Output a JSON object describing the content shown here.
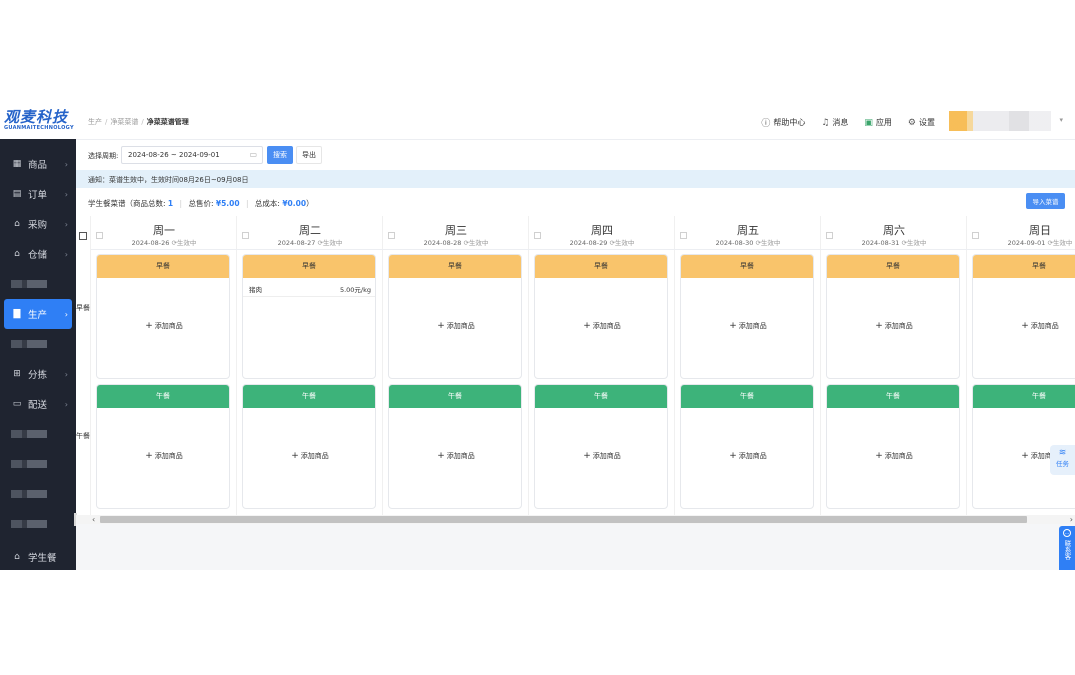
{
  "logo": {
    "main": "观麦科技",
    "sub": "GUANMAITECHNOLOGY"
  },
  "sidebar": {
    "items": [
      {
        "label": "商品",
        "icon": "grid-icon",
        "glyph": "▦"
      },
      {
        "label": "订单",
        "icon": "order-icon",
        "glyph": "▤"
      },
      {
        "label": "采购",
        "icon": "purchase-icon",
        "glyph": "⌂"
      },
      {
        "label": "仓储",
        "icon": "warehouse-icon",
        "glyph": "⌂"
      },
      {
        "label": "",
        "icon": "blurred-icon",
        "glyph": ""
      },
      {
        "label": "生产",
        "icon": "production-icon",
        "glyph": "▇",
        "active": true
      },
      {
        "label": "",
        "icon": "blurred-icon",
        "glyph": ""
      },
      {
        "label": "分拣",
        "icon": "sorting-icon",
        "glyph": "⊞"
      },
      {
        "label": "配送",
        "icon": "delivery-icon",
        "glyph": "▭"
      },
      {
        "label": "",
        "icon": "blurred-icon",
        "glyph": ""
      },
      {
        "label": "",
        "icon": "blurred-icon",
        "glyph": ""
      },
      {
        "label": "",
        "icon": "blurred-icon",
        "glyph": ""
      },
      {
        "label": "",
        "icon": "blurred-icon",
        "glyph": ""
      }
    ],
    "bottom": {
      "label": "学生餐",
      "glyph": "⌂"
    }
  },
  "breadcrumb": {
    "level1": "生产",
    "level2": "净菜菜谱",
    "current": "净菜菜谱管理"
  },
  "header": {
    "help": "帮助中心",
    "messages": "消息",
    "apps": "应用",
    "settings": "设置"
  },
  "toolbar": {
    "period_label": "选择周期:",
    "date_range": "2024-08-26 ~ 2024-09-01",
    "search": "搜索",
    "export": "导出"
  },
  "notice": "通知：菜谱生效中，生效时间08月26日~09月08日",
  "summary": {
    "title": "学生餐菜谱",
    "count_label": "（商品总数:",
    "count": "1",
    "price_label": "总售价:",
    "price": "¥5.00",
    "cost_label": "总成本:",
    "cost": "¥0.00",
    "close": "）",
    "import": "导入菜谱"
  },
  "rows": {
    "breakfast": "早餐",
    "lunch": "午餐"
  },
  "add_label": "添加商品",
  "days": [
    {
      "name": "周一",
      "date": "2024-08-26",
      "status": "生效中"
    },
    {
      "name": "周二",
      "date": "2024-08-27",
      "status": "生效中"
    },
    {
      "name": "周三",
      "date": "2024-08-28",
      "status": "生效中"
    },
    {
      "name": "周四",
      "date": "2024-08-29",
      "status": "生效中"
    },
    {
      "name": "周五",
      "date": "2024-08-30",
      "status": "生效中"
    },
    {
      "name": "周六",
      "date": "2024-08-31",
      "status": "生效中"
    },
    {
      "name": "周日",
      "date": "2024-09-01",
      "status": "生效中"
    }
  ],
  "product": {
    "name": "猪肉",
    "price": "5.00元/kg"
  },
  "floating": {
    "task": "任务",
    "contact": "联系客"
  },
  "colors": {
    "accent": "#2f7ff5",
    "breakfast": "#f9c46b",
    "lunch": "#3db37a",
    "sidebar": "#1f2430",
    "notice": "#e3f0fa"
  }
}
